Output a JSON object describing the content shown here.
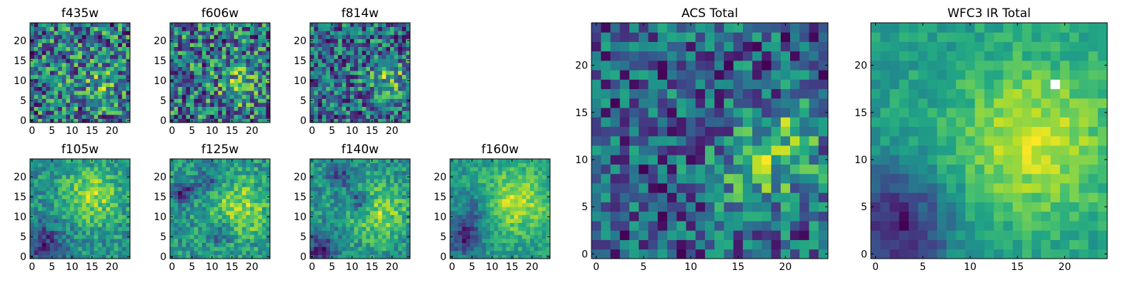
{
  "figure": {
    "title": "",
    "colormap": "viridis",
    "colors": {
      "background": "#ffffff",
      "axis": "#000000",
      "nan": "#ffffff"
    }
  },
  "chart_data": [
    {
      "type": "heatmap",
      "title": "f435w",
      "xlabel": "",
      "ylabel": "",
      "shape": [
        25,
        25
      ],
      "xlim": [
        -0.5,
        24.5
      ],
      "ylim": [
        -0.5,
        24.5
      ],
      "xticks": [
        0,
        5,
        10,
        15,
        20
      ],
      "yticks": [
        0,
        5,
        10,
        15,
        20
      ],
      "origin": "lower",
      "grid": false,
      "noise": 0.9,
      "seed": 101,
      "blobs": [
        {
          "x": 17,
          "y": 10,
          "amp": 0.25,
          "sigma": 4
        }
      ]
    },
    {
      "type": "heatmap",
      "title": "f606w",
      "xlabel": "",
      "ylabel": "",
      "shape": [
        25,
        25
      ],
      "xlim": [
        -0.5,
        24.5
      ],
      "ylim": [
        -0.5,
        24.5
      ],
      "xticks": [
        0,
        5,
        10,
        15,
        20
      ],
      "yticks": [
        0,
        5,
        10,
        15,
        20
      ],
      "origin": "lower",
      "grid": false,
      "noise": 0.85,
      "seed": 202,
      "blobs": [
        {
          "x": 17,
          "y": 9,
          "amp": 0.3,
          "sigma": 3.5
        }
      ]
    },
    {
      "type": "heatmap",
      "title": "f814w",
      "xlabel": "",
      "ylabel": "",
      "shape": [
        25,
        25
      ],
      "xlim": [
        -0.5,
        24.5
      ],
      "ylim": [
        -0.5,
        24.5
      ],
      "xticks": [
        0,
        5,
        10,
        15,
        20
      ],
      "yticks": [
        0,
        5,
        10,
        15,
        20
      ],
      "origin": "lower",
      "grid": false,
      "noise": 0.8,
      "seed": 303,
      "blobs": [
        {
          "x": 19,
          "y": 11,
          "amp": 0.35,
          "sigma": 3.5
        }
      ]
    },
    {
      "type": "heatmap",
      "title": "f105w",
      "xlabel": "",
      "ylabel": "",
      "shape": [
        25,
        25
      ],
      "xlim": [
        -0.5,
        24.5
      ],
      "ylim": [
        -0.5,
        24.5
      ],
      "xticks": [
        0,
        5,
        10,
        15,
        20
      ],
      "yticks": [
        0,
        5,
        10,
        15,
        20
      ],
      "origin": "lower",
      "grid": false,
      "noise": 0.45,
      "seed": 404,
      "blobs": [
        {
          "x": 15,
          "y": 15,
          "amp": 0.4,
          "sigma": 5
        },
        {
          "x": 3,
          "y": 3,
          "amp": -0.45,
          "sigma": 4
        }
      ]
    },
    {
      "type": "heatmap",
      "title": "f125w",
      "xlabel": "",
      "ylabel": "",
      "shape": [
        25,
        25
      ],
      "xlim": [
        -0.5,
        24.5
      ],
      "ylim": [
        -0.5,
        24.5
      ],
      "xticks": [
        0,
        5,
        10,
        15,
        20
      ],
      "yticks": [
        0,
        5,
        10,
        15,
        20
      ],
      "origin": "lower",
      "grid": false,
      "noise": 0.45,
      "seed": 505,
      "blobs": [
        {
          "x": 17,
          "y": 12,
          "amp": 0.4,
          "sigma": 5
        },
        {
          "x": 3,
          "y": 16,
          "amp": -0.5,
          "sigma": 1.8
        },
        {
          "x": 9,
          "y": 19,
          "amp": -0.4,
          "sigma": 1.8
        },
        {
          "x": 12,
          "y": 6,
          "amp": -0.35,
          "sigma": 2
        }
      ]
    },
    {
      "type": "heatmap",
      "title": "f140w",
      "xlabel": "",
      "ylabel": "",
      "shape": [
        25,
        25
      ],
      "xlim": [
        -0.5,
        24.5
      ],
      "ylim": [
        -0.5,
        24.5
      ],
      "xticks": [
        0,
        5,
        10,
        15,
        20
      ],
      "yticks": [
        0,
        5,
        10,
        15,
        20
      ],
      "origin": "lower",
      "grid": false,
      "noise": 0.45,
      "seed": 606,
      "blobs": [
        {
          "x": 17,
          "y": 11,
          "amp": 0.4,
          "sigma": 5
        },
        {
          "x": 12,
          "y": 14,
          "amp": -0.5,
          "sigma": 1.8
        },
        {
          "x": 7,
          "y": 20,
          "amp": -0.4,
          "sigma": 1.8
        },
        {
          "x": 2,
          "y": 2,
          "amp": -0.5,
          "sigma": 2.5
        }
      ]
    },
    {
      "type": "heatmap",
      "title": "f160w",
      "xlabel": "",
      "ylabel": "",
      "shape": [
        25,
        25
      ],
      "xlim": [
        -0.5,
        24.5
      ],
      "ylim": [
        -0.5,
        24.5
      ],
      "xticks": [
        0,
        5,
        10,
        15,
        20
      ],
      "yticks": [
        0,
        5,
        10,
        15,
        20
      ],
      "origin": "lower",
      "grid": false,
      "noise": 0.35,
      "seed": 707,
      "blobs": [
        {
          "x": 16,
          "y": 14,
          "amp": 0.45,
          "sigma": 6
        },
        {
          "x": 3,
          "y": 5,
          "amp": -0.55,
          "sigma": 3
        },
        {
          "x": 6,
          "y": 12,
          "amp": -0.3,
          "sigma": 3
        }
      ]
    },
    {
      "type": "heatmap",
      "title": "ACS Total",
      "xlabel": "",
      "ylabel": "",
      "shape": [
        25,
        25
      ],
      "xlim": [
        -0.5,
        24.5
      ],
      "ylim": [
        -0.5,
        24.5
      ],
      "xticks": [
        0,
        5,
        10,
        15,
        20
      ],
      "yticks": [
        0,
        5,
        10,
        15,
        20
      ],
      "origin": "lower",
      "grid": false,
      "noise": 0.7,
      "seed": 808,
      "blobs": [
        {
          "x": 18,
          "y": 9,
          "amp": 0.4,
          "sigma": 3.5
        },
        {
          "x": 21,
          "y": 13,
          "amp": 0.3,
          "sigma": 2
        }
      ]
    },
    {
      "type": "heatmap",
      "title": "WFC3 IR Total",
      "xlabel": "",
      "ylabel": "",
      "shape": [
        25,
        25
      ],
      "xlim": [
        -0.5,
        24.5
      ],
      "ylim": [
        -0.5,
        24.5
      ],
      "xticks": [
        0,
        5,
        10,
        15,
        20
      ],
      "yticks": [
        0,
        5,
        10,
        15,
        20
      ],
      "origin": "lower",
      "grid": false,
      "noise": 0.3,
      "seed": 909,
      "blobs": [
        {
          "x": 17,
          "y": 12,
          "amp": 0.5,
          "sigma": 6
        },
        {
          "x": 2,
          "y": 3,
          "amp": -0.7,
          "sigma": 4
        }
      ],
      "nan_cells": [
        [
          19,
          18
        ]
      ]
    }
  ]
}
